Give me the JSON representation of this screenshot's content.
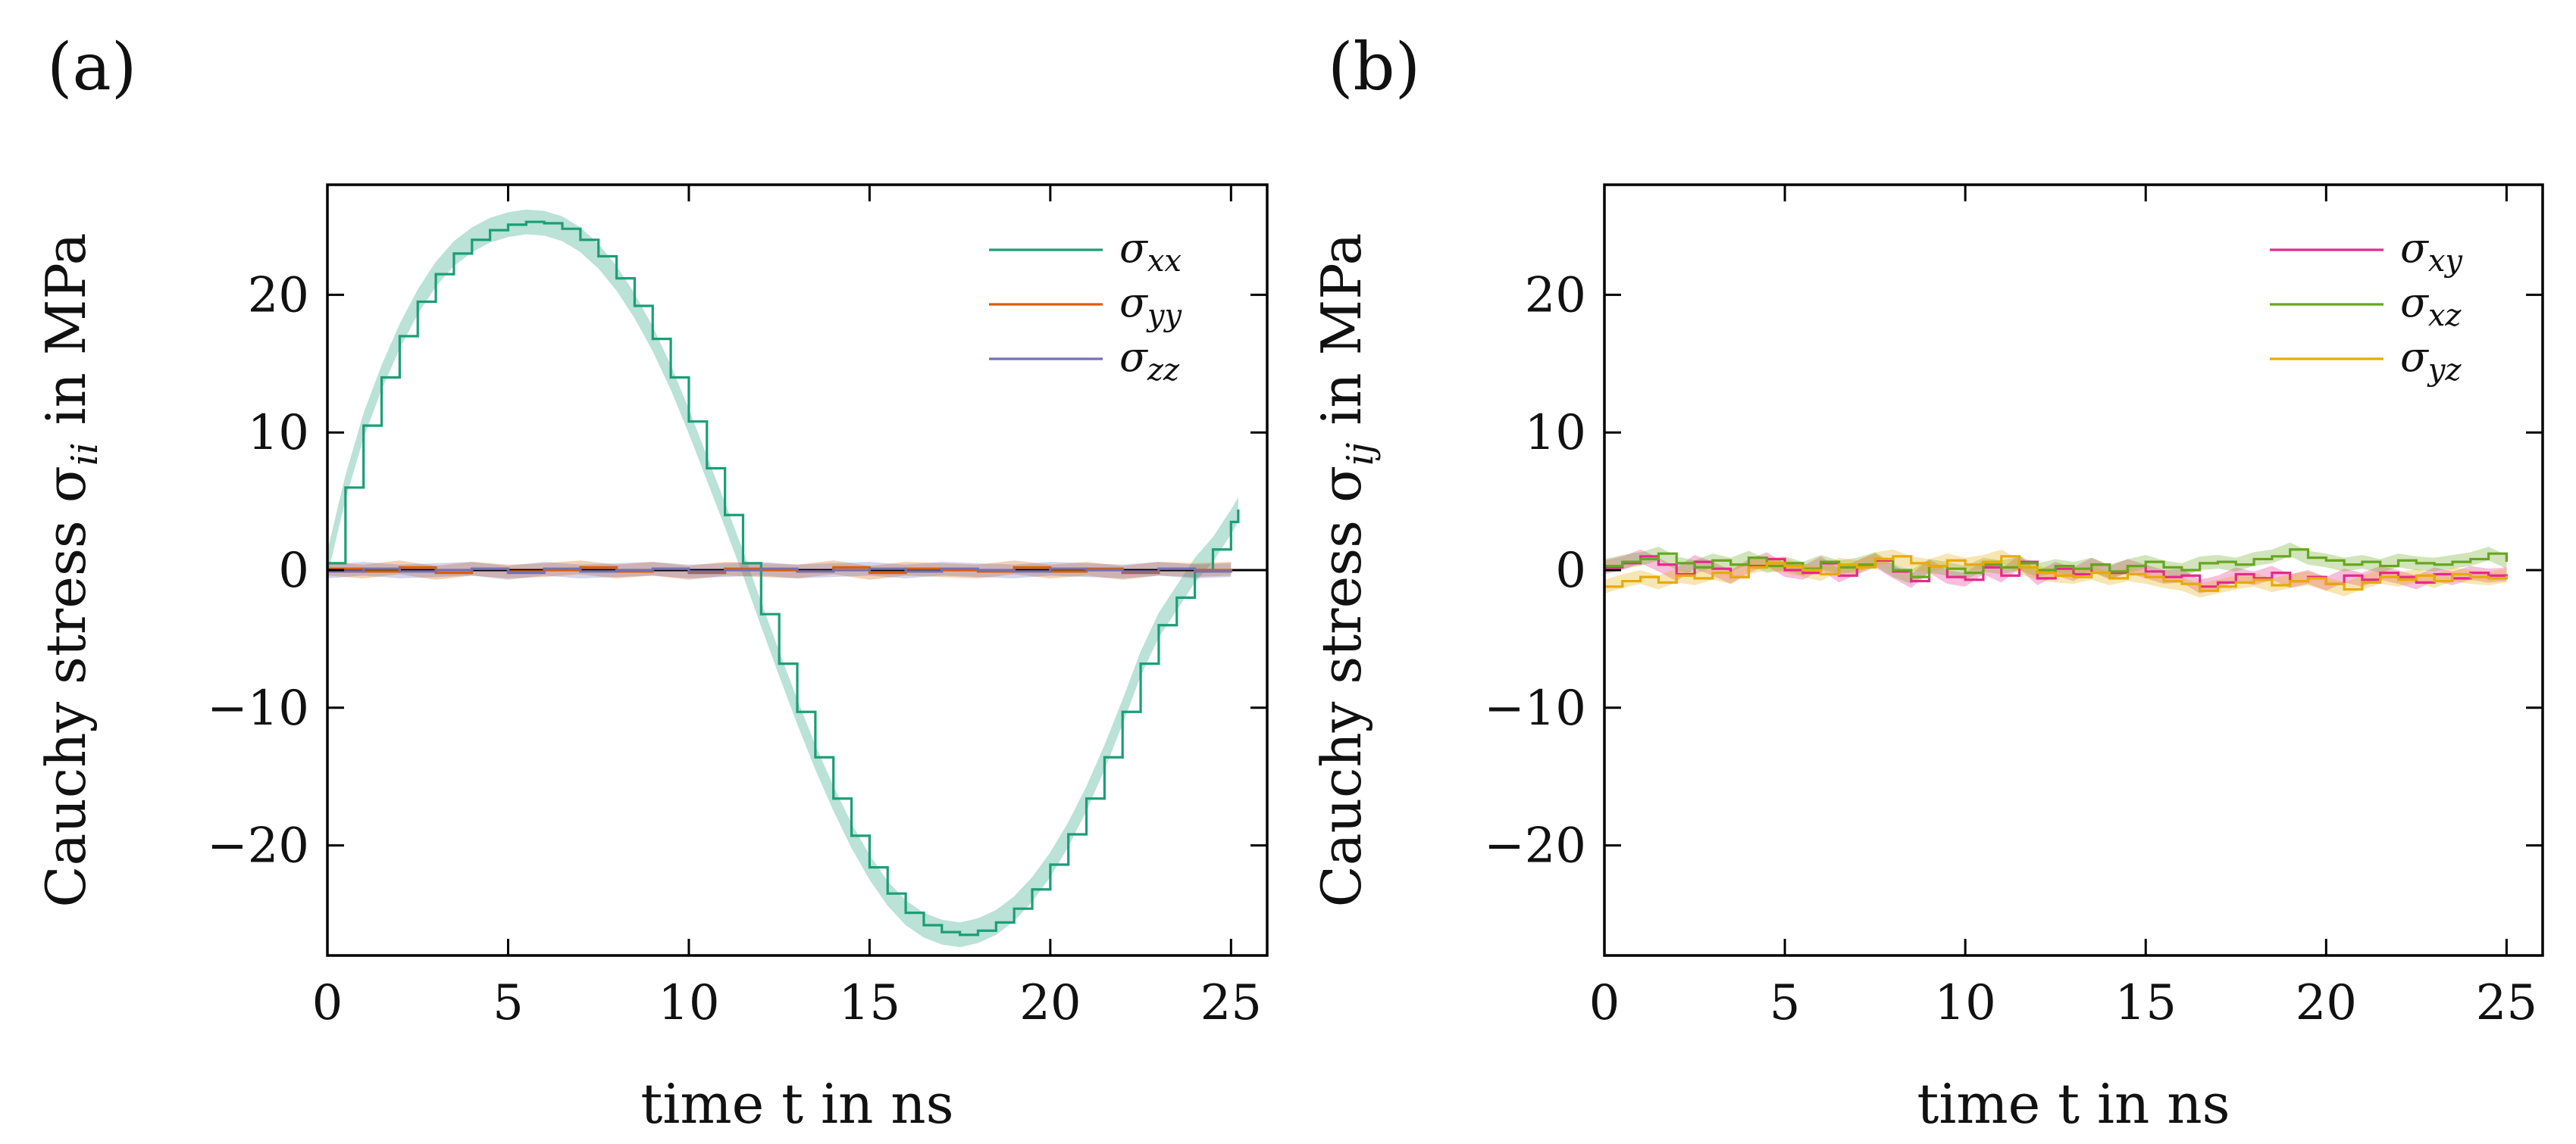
{
  "chart_data": [
    {
      "panel_label": "(a)",
      "type": "line",
      "title": "",
      "xlabel": "time t in ns",
      "ylabel": "Cauchy stress σii in MPa",
      "ylabel_parts": [
        "Cauchy stress σ",
        "ii",
        " in MPa"
      ],
      "xlim": [
        0,
        26
      ],
      "ylim": [
        -28,
        28
      ],
      "xticks": [
        0,
        5,
        10,
        15,
        20,
        25
      ],
      "yticks": [
        -20,
        -10,
        0,
        10,
        20
      ],
      "ytick_labels": [
        "−20",
        "−10",
        "0",
        "10",
        "20"
      ],
      "zero_line": true,
      "legend_position": "top-right",
      "series": [
        {
          "name": "σxx",
          "sym": "σ",
          "sub": "xx",
          "color": "#1b9e77",
          "x": [
            0,
            0.5,
            1,
            1.5,
            2,
            2.5,
            3,
            3.5,
            4,
            4.5,
            5,
            5.5,
            6,
            6.5,
            7,
            7.5,
            8,
            8.5,
            9,
            9.5,
            10,
            10.5,
            11,
            11.5,
            12,
            12.5,
            13,
            13.5,
            14,
            14.5,
            15,
            15.5,
            16,
            16.5,
            17,
            17.5,
            18,
            18.5,
            19,
            19.5,
            20,
            20.5,
            21,
            21.5,
            22,
            22.5,
            23,
            23.5,
            24,
            24.5,
            25,
            25.2
          ],
          "y": [
            0.5,
            6.0,
            10.5,
            14.0,
            17.0,
            19.5,
            21.5,
            23.0,
            24.0,
            24.7,
            25.1,
            25.3,
            25.2,
            24.8,
            24.0,
            22.8,
            21.2,
            19.2,
            16.8,
            14.0,
            10.8,
            7.4,
            4.0,
            0.5,
            -3.2,
            -6.8,
            -10.3,
            -13.6,
            -16.6,
            -19.3,
            -21.6,
            -23.5,
            -24.9,
            -25.8,
            -26.3,
            -26.5,
            -26.2,
            -25.6,
            -24.6,
            -23.2,
            -21.4,
            -19.2,
            -16.6,
            -13.6,
            -10.3,
            -6.8,
            -4.0,
            -2.0,
            0.0,
            1.5,
            3.5,
            4.4
          ],
          "band": 0.9
        },
        {
          "name": "σyy",
          "sym": "σ",
          "sub": "yy",
          "color": "#d95f02",
          "x": [
            0,
            1,
            2,
            3,
            4,
            5,
            6,
            7,
            8,
            9,
            10,
            11,
            12,
            13,
            14,
            15,
            16,
            17,
            18,
            19,
            20,
            21,
            22,
            23,
            24,
            25
          ],
          "y": [
            0.1,
            -0.1,
            0.2,
            -0.2,
            0.1,
            -0.1,
            0.0,
            0.2,
            -0.1,
            0.1,
            -0.2,
            0.1,
            0.0,
            -0.1,
            0.2,
            -0.2,
            0.1,
            0.0,
            -0.1,
            0.2,
            -0.1,
            0.1,
            -0.2,
            0.1,
            0.0,
            0.1
          ],
          "band": 0.5
        },
        {
          "name": "σzz",
          "sym": "σ",
          "sub": "zz",
          "color": "#7570b3",
          "x": [
            0,
            1,
            2,
            3,
            4,
            5,
            6,
            7,
            8,
            9,
            10,
            11,
            12,
            13,
            14,
            15,
            16,
            17,
            18,
            19,
            20,
            21,
            22,
            23,
            24,
            25
          ],
          "y": [
            -0.1,
            0.1,
            -0.1,
            0.0,
            0.1,
            -0.2,
            0.1,
            -0.1,
            0.0,
            0.1,
            -0.1,
            0.0,
            0.1,
            -0.1,
            0.0,
            0.1,
            -0.1,
            0.1,
            0.0,
            -0.1,
            0.1,
            0.0,
            -0.1,
            0.1,
            -0.1,
            0.0
          ],
          "band": 0.5
        }
      ]
    },
    {
      "panel_label": "(b)",
      "type": "line",
      "title": "",
      "xlabel": "time t in ns",
      "ylabel": "Cauchy stress σij in MPa",
      "ylabel_parts": [
        "Cauchy stress σ",
        "ij",
        " in MPa"
      ],
      "xlim": [
        0,
        26
      ],
      "ylim": [
        -28,
        28
      ],
      "xticks": [
        0,
        5,
        10,
        15,
        20,
        25
      ],
      "yticks": [
        -20,
        -10,
        0,
        10,
        20
      ],
      "ytick_labels": [
        "−20",
        "−10",
        "0",
        "10",
        "20"
      ],
      "zero_line": false,
      "legend_position": "top-right",
      "series": [
        {
          "name": "σxy",
          "sym": "σ",
          "sub": "xy",
          "color": "#e7298a",
          "x": [
            0,
            0.5,
            1,
            1.5,
            2,
            2.5,
            3,
            3.5,
            4,
            4.5,
            5,
            5.5,
            6,
            6.5,
            7,
            7.5,
            8,
            8.5,
            9,
            9.5,
            10,
            10.5,
            11,
            11.5,
            12,
            12.5,
            13,
            13.5,
            14,
            14.5,
            15,
            15.5,
            16,
            16.5,
            17,
            17.5,
            18,
            18.5,
            19,
            19.5,
            20,
            20.5,
            21,
            21.5,
            22,
            22.5,
            23,
            23.5,
            24,
            24.5,
            25
          ],
          "y": [
            0.2,
            0.5,
            1.0,
            0.4,
            -0.3,
            0.6,
            0.1,
            -0.5,
            0.3,
            0.8,
            0.0,
            -0.2,
            0.5,
            -0.4,
            0.2,
            0.7,
            -0.1,
            -0.8,
            0.3,
            -0.5,
            -0.7,
            0.2,
            -0.4,
            0.6,
            -0.6,
            0.1,
            -0.3,
            0.4,
            -0.2,
            0.3,
            -0.1,
            -0.5,
            -0.4,
            -1.2,
            -0.9,
            -0.3,
            -0.6,
            -0.2,
            -0.8,
            -0.5,
            -1.0,
            -0.4,
            -0.7,
            -0.2,
            -0.5,
            -0.9,
            -0.3,
            -0.6,
            -0.2,
            -0.4,
            -0.3
          ],
          "band": 0.5
        },
        {
          "name": "σxz",
          "sym": "σ",
          "sub": "xz",
          "color": "#66a61e",
          "x": [
            0,
            0.5,
            1,
            1.5,
            2,
            2.5,
            3,
            3.5,
            4,
            4.5,
            5,
            5.5,
            6,
            6.5,
            7,
            7.5,
            8,
            8.5,
            9,
            9.5,
            10,
            10.5,
            11,
            11.5,
            12,
            12.5,
            13,
            13.5,
            14,
            14.5,
            15,
            15.5,
            16,
            16.5,
            17,
            17.5,
            18,
            18.5,
            19,
            19.5,
            20,
            20.5,
            21,
            21.5,
            22,
            22.5,
            23,
            23.5,
            24,
            24.5,
            25
          ],
          "y": [
            0.3,
            0.6,
            0.8,
            1.2,
            0.5,
            0.2,
            0.7,
            0.4,
            0.9,
            0.3,
            0.5,
            0.1,
            0.6,
            0.2,
            0.4,
            0.8,
            0.0,
            -0.5,
            0.3,
            0.1,
            -0.2,
            0.4,
            0.2,
            0.5,
            0.0,
            0.3,
            0.1,
            0.4,
            -0.1,
            0.3,
            0.6,
            0.2,
            0.0,
            0.5,
            0.6,
            0.4,
            0.8,
            1.0,
            1.5,
            0.9,
            0.7,
            0.4,
            0.6,
            0.3,
            0.7,
            0.5,
            0.4,
            0.6,
            0.8,
            1.2,
            0.6
          ],
          "band": 0.5
        },
        {
          "name": "σyz",
          "sym": "σ",
          "sub": "yz",
          "color": "#e6ab02",
          "x": [
            0,
            0.5,
            1,
            1.5,
            2,
            2.5,
            3,
            3.5,
            4,
            4.5,
            5,
            5.5,
            6,
            6.5,
            7,
            7.5,
            8,
            8.5,
            9,
            9.5,
            10,
            10.5,
            11,
            11.5,
            12,
            12.5,
            13,
            13.5,
            14,
            14.5,
            15,
            15.5,
            16,
            16.5,
            17,
            17.5,
            18,
            18.5,
            19,
            19.5,
            20,
            20.5,
            21,
            21.5,
            22,
            22.5,
            23,
            23.5,
            24,
            24.5,
            25
          ],
          "y": [
            -1.2,
            -0.8,
            -0.5,
            -0.9,
            -0.4,
            -0.6,
            -0.2,
            -0.5,
            0.2,
            0.5,
            0.3,
            0.0,
            -0.3,
            0.4,
            0.2,
            0.8,
            1.0,
            0.5,
            0.3,
            0.7,
            0.4,
            0.6,
            1.0,
            0.2,
            -0.2,
            -0.4,
            -0.5,
            -0.2,
            -0.6,
            -0.3,
            -0.5,
            -0.8,
            -1.0,
            -1.5,
            -1.2,
            -0.9,
            -0.7,
            -1.1,
            -0.8,
            -0.6,
            -1.0,
            -1.4,
            -0.9,
            -0.5,
            -0.7,
            -0.4,
            -0.8,
            -0.3,
            -0.5,
            -0.6,
            -0.4
          ],
          "band": 0.5
        }
      ]
    }
  ]
}
